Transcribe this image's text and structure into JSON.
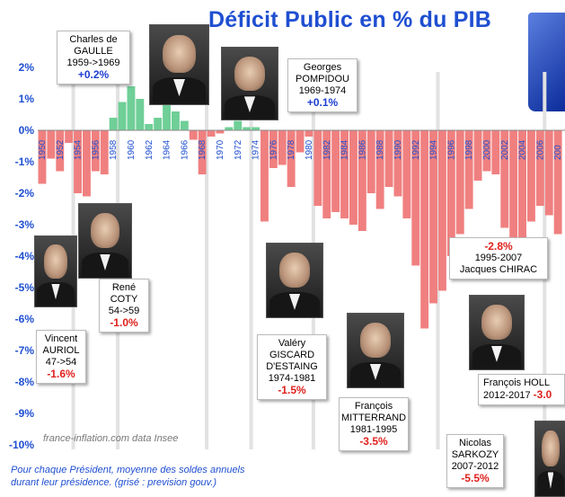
{
  "title": "Déficit Public en % du PIB",
  "credit": "france-inflation.com  data Insee",
  "footnote": [
    "Pour chaque Président, moyenne des soldes annuels",
    "durant leur présidence. (grisé : prevision gouv.)"
  ],
  "colors": {
    "positive": "#6fcf97",
    "negative": "#f08080",
    "axis_text": "#1f4fd1",
    "avg_positive": "#1f3fd1",
    "avg_negative": "#e0211d"
  },
  "chart_data": {
    "type": "bar",
    "title": "Déficit Public en % du PIB",
    "ylim": [
      -10,
      2
    ],
    "yticks": [
      "2%",
      "1%",
      "0%",
      "-1%",
      "-2%",
      "-3%",
      "-4%",
      "-5%",
      "-6%",
      "-7%",
      "-8%",
      "-9%",
      "-10%"
    ],
    "xticks": [
      "1950",
      "1952",
      "1954",
      "1956",
      "1958",
      "1960",
      "1962",
      "1964",
      "1966",
      "1968",
      "1970",
      "1972",
      "1974",
      "1976",
      "1978",
      "1980",
      "1982",
      "1984",
      "1986",
      "1988",
      "1990",
      "1992",
      "1994",
      "1996",
      "1998",
      "2000",
      "2002",
      "2004",
      "2006",
      "200"
    ],
    "x": [
      1950,
      1951,
      1952,
      1953,
      1954,
      1955,
      1956,
      1957,
      1958,
      1959,
      1960,
      1961,
      1962,
      1963,
      1964,
      1965,
      1966,
      1967,
      1968,
      1969,
      1970,
      1971,
      1972,
      1973,
      1974,
      1975,
      1976,
      1977,
      1978,
      1979,
      1980,
      1981,
      1982,
      1983,
      1984,
      1985,
      1986,
      1987,
      1988,
      1989,
      1990,
      1991,
      1992,
      1993,
      1994,
      1995,
      1996,
      1997,
      1998,
      1999,
      2000,
      2001,
      2002,
      2003,
      2004,
      2005,
      2006,
      2007,
      2008
    ],
    "values": [
      -1.7,
      -0.9,
      -1.3,
      -0.4,
      -2.0,
      -2.1,
      -1.3,
      -1.4,
      0.4,
      0.9,
      1.4,
      1.0,
      0.2,
      0.4,
      0.8,
      0.6,
      0.3,
      -0.3,
      -1.4,
      -0.2,
      -0.1,
      0.1,
      0.3,
      0.1,
      0.1,
      -2.9,
      -1.2,
      -1.1,
      -1.8,
      -0.7,
      -0.2,
      -2.4,
      -2.8,
      -2.6,
      -2.8,
      -3.0,
      -3.2,
      -2.0,
      -2.5,
      -1.8,
      -2.1,
      -2.8,
      -4.3,
      -6.3,
      -5.5,
      -5.1,
      -4.0,
      -3.3,
      -2.5,
      -1.6,
      -1.3,
      -1.4,
      -3.1,
      -3.9,
      -3.6,
      -2.9,
      -2.4,
      -2.7,
      -3.3
    ],
    "presidents": [
      {
        "name": [
          "Vincent",
          "AURIOL"
        ],
        "period": "47->54",
        "avg": "-1.6%"
      },
      {
        "name": [
          "René",
          "COTY"
        ],
        "period": "54->59",
        "avg": "-1.0%"
      },
      {
        "name": [
          "Charles de",
          "GAULLE"
        ],
        "period": "1959->1969",
        "avg": "+0.2%"
      },
      {
        "name": [
          "Georges",
          "POMPIDOU"
        ],
        "period": "1969-1974",
        "avg": "+0.1%"
      },
      {
        "name": [
          "Valéry",
          "GISCARD",
          "D'ESTAING"
        ],
        "period": "1974-1981",
        "avg": "-1.5%"
      },
      {
        "name": [
          "François",
          "MITTERRAND"
        ],
        "period": "1981-1995",
        "avg": "-3.5%"
      },
      {
        "name": [
          "Jacques CHIRAC"
        ],
        "period": "1995-2007",
        "avg": "-2.8%"
      },
      {
        "name": [
          "Nicolas",
          "SARKOZY"
        ],
        "period": "2007-2012",
        "avg": "-5.5%"
      },
      {
        "name": [
          "François HOLL"
        ],
        "period": "2012-2017",
        "avg": "-3.0"
      }
    ]
  }
}
